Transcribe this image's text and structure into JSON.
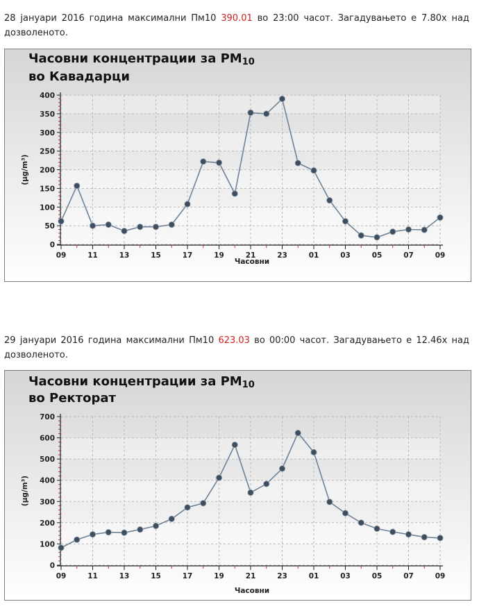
{
  "sections": [
    {
      "text_before": "28 јануари 2016 година максимални Пм10",
      "value": "390.01",
      "text_after": "во 23:00 часот. Загадувањето е 7.80x над дозволеното."
    },
    {
      "text_before": "29 јануари 2016 година максимални Пм10",
      "value": "623.03",
      "text_after": "во 00:00 часот. Загадувањето е 12.46x над дозволеното."
    }
  ],
  "chart_data": [
    {
      "type": "line",
      "title_line1": "Часовни концентрации за PM",
      "title_subscript": "10",
      "title_line2": "во Кавадарци",
      "xlabel": "Часовни",
      "ylabel": "(μg/m³)",
      "ylim": [
        0,
        400
      ],
      "y_ticks": [
        0,
        50,
        100,
        150,
        200,
        250,
        300,
        350,
        400
      ],
      "x_tick_labels": [
        "09",
        "11",
        "13",
        "15",
        "17",
        "19",
        "21",
        "23",
        "01",
        "03",
        "05",
        "07",
        "09"
      ],
      "series": [
        {
          "values": [
            62,
            157,
            50,
            53,
            36,
            47,
            47,
            53,
            108,
            222,
            219,
            136,
            353,
            350,
            390,
            218,
            198,
            118,
            62,
            24,
            19,
            34,
            40,
            39,
            72
          ]
        }
      ],
      "grid": true,
      "colors": {
        "line": "#6e8296",
        "marker": "#3e4e5e"
      }
    },
    {
      "type": "line",
      "title_line1": "Часовни концентрации за PM",
      "title_subscript": "10",
      "title_line2": "во Ректорат",
      "xlabel": "Часовни",
      "ylabel": "(μg/m³)",
      "ylim": [
        0,
        700
      ],
      "y_ticks": [
        0,
        100,
        200,
        300,
        400,
        500,
        600,
        700
      ],
      "x_tick_labels": [
        "09",
        "11",
        "13",
        "15",
        "17",
        "19",
        "21",
        "23",
        "01",
        "03",
        "05",
        "07",
        "09"
      ],
      "series": [
        {
          "values": [
            82,
            120,
            145,
            155,
            153,
            168,
            185,
            218,
            272,
            292,
            412,
            567,
            342,
            383,
            455,
            623,
            532,
            298,
            245,
            200,
            172,
            157,
            145,
            132,
            128
          ]
        }
      ],
      "grid": true,
      "colors": {
        "line": "#6e8296",
        "marker": "#3e4e5e"
      }
    }
  ]
}
